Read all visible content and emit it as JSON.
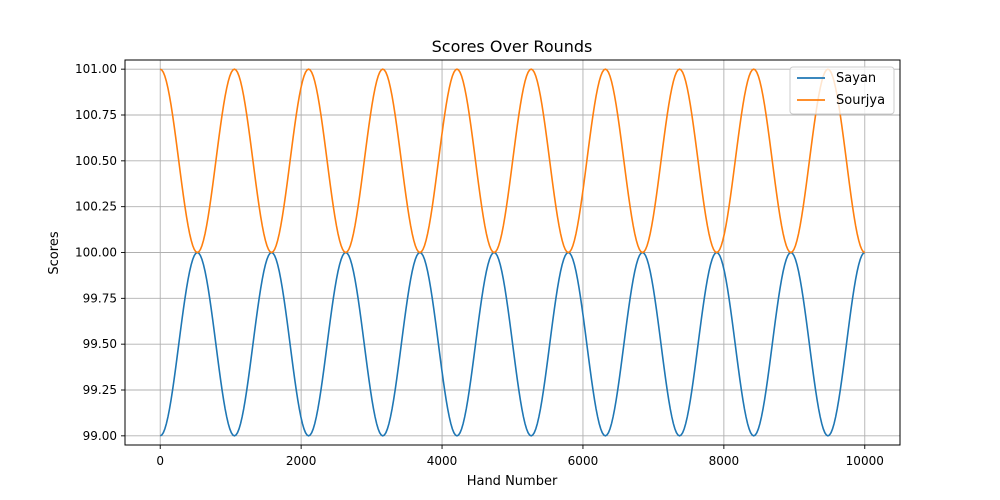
{
  "chart_data": {
    "type": "line",
    "title": "Scores Over Rounds",
    "xlabel": "Hand Number",
    "ylabel": "Scores",
    "xlim": [
      -500,
      10500
    ],
    "ylim": [
      98.95,
      101.05
    ],
    "xticks": [
      0,
      2000,
      4000,
      6000,
      8000,
      10000
    ],
    "xtick_labels": [
      "0",
      "2000",
      "4000",
      "6000",
      "8000",
      "10000"
    ],
    "yticks": [
      99.0,
      99.25,
      99.5,
      99.75,
      100.0,
      100.25,
      100.5,
      100.75,
      101.0
    ],
    "ytick_labels": [
      "99.00",
      "99.25",
      "99.50",
      "99.75",
      "100.00",
      "100.25",
      "100.50",
      "100.75",
      "101.00"
    ],
    "grid": true,
    "legend_position": "top-right",
    "x": [
      0,
      263,
      527,
      790,
      1053,
      1316,
      1580,
      1843,
      2106,
      2369,
      2633,
      2896,
      3159,
      3422,
      3686,
      3949,
      4212,
      4475,
      4739,
      5002,
      5265,
      5528,
      5792,
      6055,
      6318,
      6581,
      6845,
      7108,
      7371,
      7634,
      7898,
      8161,
      8424,
      8687,
      8951,
      9214,
      9477,
      9740,
      10000
    ],
    "series": [
      {
        "name": "Sayan",
        "color": "#1f77b4",
        "values": [
          99.0,
          99.5,
          100.0,
          99.5,
          99.0,
          99.5,
          100.0,
          99.5,
          99.0,
          99.5,
          100.0,
          99.5,
          99.0,
          99.5,
          100.0,
          99.5,
          99.0,
          99.5,
          100.0,
          99.5,
          99.0,
          99.5,
          100.0,
          99.5,
          99.0,
          99.5,
          100.0,
          99.5,
          99.0,
          99.5,
          100.0,
          99.5,
          99.0,
          99.5,
          100.0,
          99.5,
          99.0,
          99.5,
          100.0
        ]
      },
      {
        "name": "Sourjya",
        "color": "#ff7f0e",
        "values": [
          101.0,
          100.5,
          100.0,
          100.5,
          101.0,
          100.5,
          100.0,
          100.5,
          101.0,
          100.5,
          100.0,
          100.5,
          101.0,
          100.5,
          100.0,
          100.5,
          101.0,
          100.5,
          100.0,
          100.5,
          101.0,
          100.5,
          100.0,
          100.5,
          101.0,
          100.5,
          100.0,
          100.5,
          101.0,
          100.5,
          100.0,
          100.5,
          101.0,
          100.5,
          100.0,
          100.5,
          101.0,
          100.5,
          100.0
        ]
      }
    ]
  }
}
